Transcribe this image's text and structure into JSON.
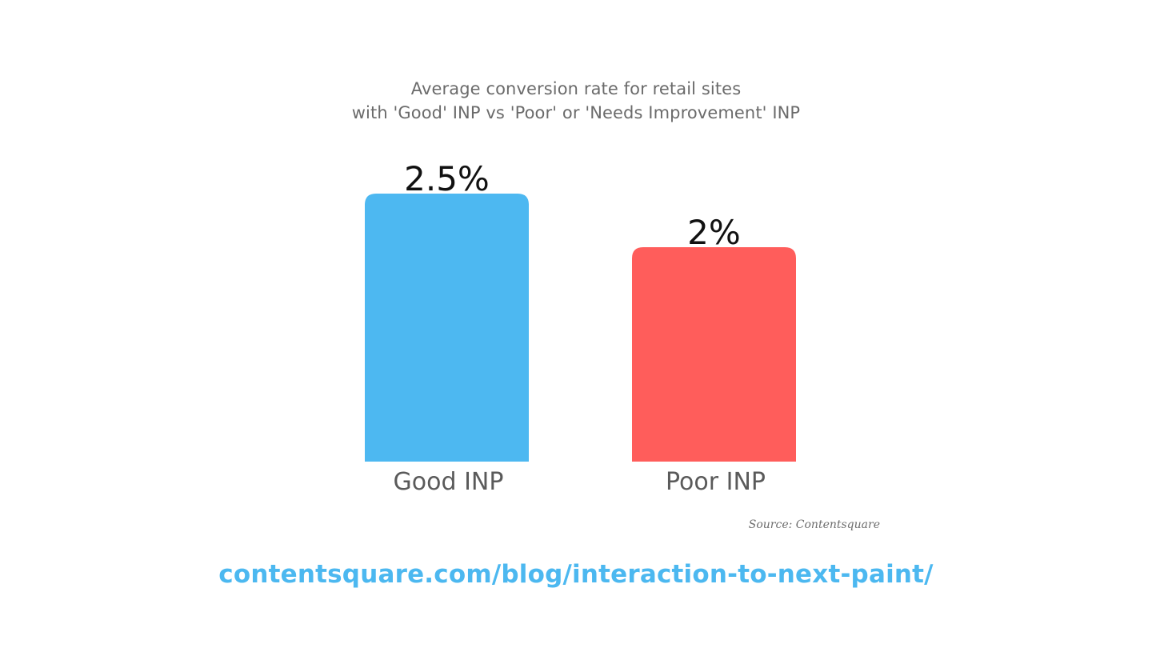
{
  "header": {
    "title_line_1": "Average conversion rate for retail sites",
    "title_line_2": "with 'Good' INP vs 'Poor' or 'Needs Improvement' INP"
  },
  "chart_data": {
    "type": "bar",
    "title": "Average conversion rate for retail sites with 'Good' INP vs 'Poor' or 'Needs Improvement' INP",
    "categories": [
      "Good INP",
      "Poor INP"
    ],
    "values": [
      2.5,
      2
    ],
    "data_labels": [
      "2.5%",
      "2%"
    ],
    "colors": [
      "#4db8f1",
      "#ff5d5b"
    ],
    "xlabel": "",
    "ylabel": "",
    "ylim": [
      0,
      2.5
    ],
    "grid": false,
    "legend": "none"
  },
  "footer": {
    "source": "Source: Contentsquare",
    "url": "contentsquare.com/blog/interaction-to-next-paint/"
  }
}
